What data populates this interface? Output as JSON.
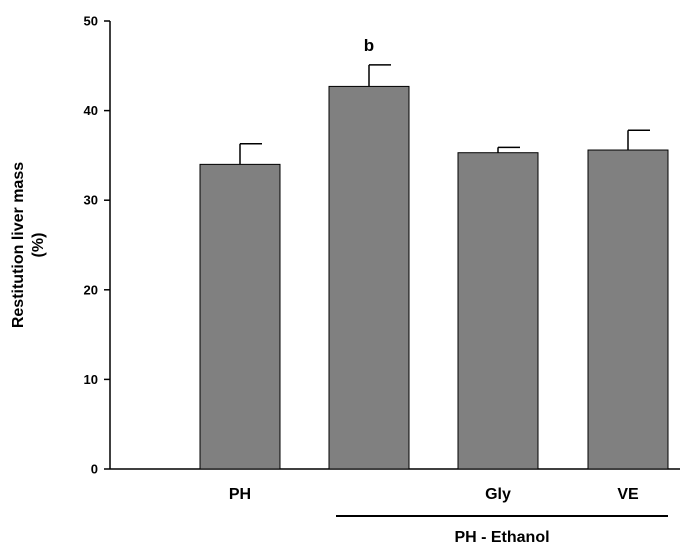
{
  "chart_data": {
    "type": "bar",
    "categories": [
      "PH",
      "",
      "Gly",
      "VE"
    ],
    "values": [
      34.0,
      42.7,
      35.3,
      35.6
    ],
    "errors": [
      2.3,
      2.4,
      0.6,
      2.2
    ],
    "annotations": [
      "",
      "b",
      "",
      ""
    ],
    "ylabel_lines": [
      "Restitution liver mass",
      "(%)"
    ],
    "ylim": [
      0,
      50
    ],
    "yticks": [
      0,
      10,
      20,
      30,
      40,
      50
    ],
    "group_label": "PH - Ethanol",
    "bar_color": "#808080",
    "grid": false
  }
}
